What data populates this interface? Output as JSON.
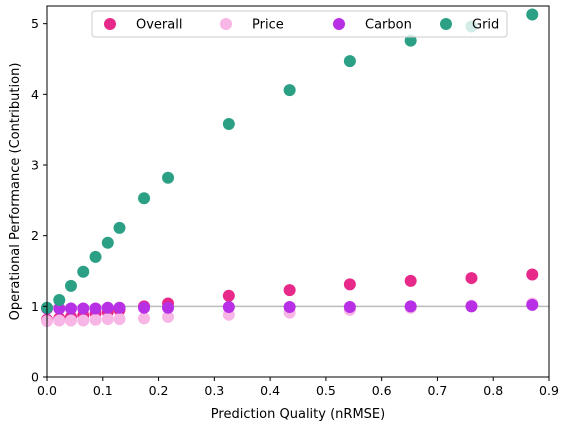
{
  "chart_data": {
    "type": "scatter",
    "title": "",
    "xlabel": "Prediction Quality (nRMSE)",
    "ylabel": "Operational Performance (Contribution)",
    "xlim": [
      0.0,
      0.9
    ],
    "ylim": [
      0,
      5.25
    ],
    "xticks": [
      "0.0",
      "0.1",
      "0.2",
      "0.3",
      "0.4",
      "0.5",
      "0.6",
      "0.7",
      "0.8",
      "0.9"
    ],
    "yticks": [
      "0",
      "1",
      "2",
      "3",
      "4",
      "5"
    ],
    "grid": false,
    "legend_position": "top-center",
    "reference_line": 1.0,
    "reference_line_color": "#bbbbbb",
    "x": [
      0.0,
      0.022,
      0.043,
      0.065,
      0.087,
      0.109,
      0.13,
      0.174,
      0.217,
      0.326,
      0.435,
      0.543,
      0.652,
      0.761,
      0.87
    ],
    "series": [
      {
        "name": "Overall",
        "color": "#e7298a",
        "values": [
          0.81,
          0.83,
          0.85,
          0.87,
          0.9,
          0.92,
          0.95,
          1.0,
          1.04,
          1.15,
          1.23,
          1.31,
          1.36,
          1.4,
          1.45
        ]
      },
      {
        "name": "Price",
        "color": "#f7b6e6",
        "values": [
          0.79,
          0.8,
          0.8,
          0.8,
          0.81,
          0.82,
          0.82,
          0.83,
          0.85,
          0.88,
          0.91,
          0.95,
          0.98,
          1.01,
          1.04
        ]
      },
      {
        "name": "Carbon",
        "color": "#b830e6",
        "values": [
          0.97,
          0.97,
          0.97,
          0.97,
          0.97,
          0.98,
          0.98,
          0.98,
          0.98,
          0.99,
          0.99,
          0.99,
          1.0,
          1.0,
          1.02
        ]
      },
      {
        "name": "Grid",
        "color": "#2ca085",
        "values": [
          0.98,
          1.09,
          1.29,
          1.49,
          1.7,
          1.9,
          2.11,
          2.53,
          2.82,
          3.58,
          4.06,
          4.47,
          4.76,
          4.96,
          5.13
        ]
      }
    ]
  }
}
